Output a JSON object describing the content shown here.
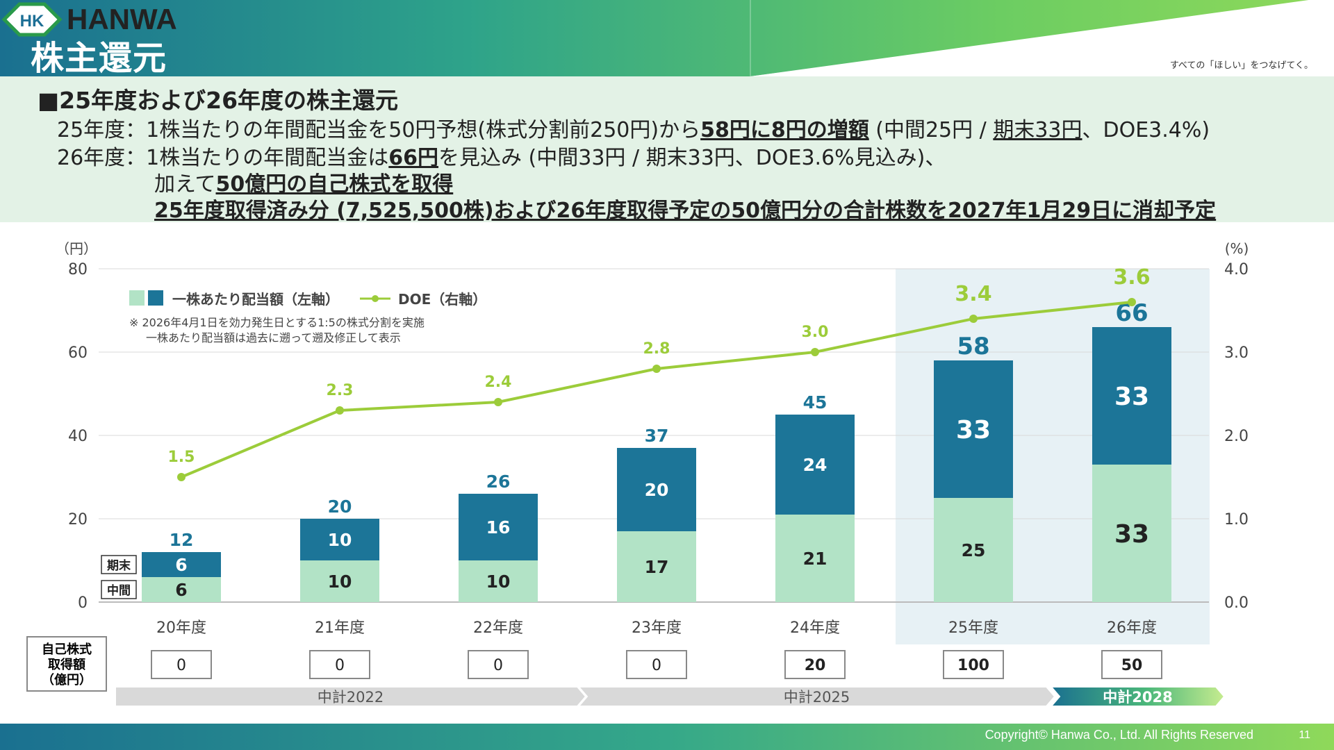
{
  "header": {
    "title": "株主還元",
    "logo_mark": "HK",
    "logo_text": "HANWA",
    "logo_tagline": "すべての「ほしい」をつなげてく。",
    "colors": {
      "teal": "#1a7090",
      "green": "#7fd35a"
    }
  },
  "summary": {
    "heading": "■25年度および26年度の株主還元",
    "fy25": {
      "prefix": "25年度：1株当たりの年間配当金を50円予想(株式分割前250円)から",
      "highlight": "58円に8円の増額",
      "detail_a": " (中間25円 / ",
      "detail_underlined": "期末33円",
      "detail_b": "、DOE3.4%)"
    },
    "fy26": {
      "prefix": "26年度：1株当たりの年間配当金は",
      "highlight": "66円",
      "suffix": "を見込み (中間33円 / 期末33円、DOE3.6%見込み)、",
      "line2_prefix": "加えて",
      "line2_highlight": "50億円の自己株式を取得",
      "line3": "25年度取得済み分 (7,525,500株)および26年度取得予定の50億円分の合計株数を2027年1月29日に消却予定"
    }
  },
  "chart_data": {
    "type": "bar",
    "stacked": true,
    "categories": [
      "20年度",
      "21年度",
      "22年度",
      "23年度",
      "24年度",
      "25年度",
      "26年度"
    ],
    "series": [
      {
        "name": "中間",
        "values": [
          6,
          10,
          10,
          17,
          21,
          25,
          33
        ],
        "color": "#b2e3c6"
      },
      {
        "name": "期末",
        "values": [
          6,
          10,
          16,
          20,
          24,
          33,
          33
        ],
        "color": "#1c7598"
      }
    ],
    "totals": [
      12,
      20,
      26,
      37,
      45,
      58,
      66
    ],
    "line_series": {
      "name": "DOE（右軸）",
      "values": [
        1.5,
        2.3,
        2.4,
        2.8,
        3.0,
        3.4,
        3.6
      ],
      "labels": [
        "1.5",
        "2.3",
        "2.4",
        "2.8",
        "3.0",
        "3.4",
        "3.6"
      ],
      "color": "#9ccc3a"
    },
    "y_left": {
      "unit": "（円）",
      "min": 0,
      "max": 80,
      "ticks": [
        0,
        20,
        40,
        60,
        80
      ],
      "tick_labels": [
        "0",
        "20",
        "40",
        "60",
        "80"
      ]
    },
    "y_right": {
      "unit": "(%)",
      "min": 0,
      "max": 4,
      "ticks": [
        0,
        1,
        2,
        3,
        4
      ],
      "tick_labels": [
        "0.0",
        "1.0",
        "2.0",
        "3.0",
        "4.0"
      ]
    },
    "legend": {
      "bar_label": "一株あたり配当額（左軸）",
      "line_label": "DOE（右軸）",
      "placement": "top-left"
    },
    "note_lines": [
      "※ 2026年4月1日を効力発生日とする1:5の株式分割を実施",
      "一株あたり配当額は過去に遡って遡及修正して表示"
    ],
    "segment_tags": {
      "bottom": "中間",
      "top": "期末"
    },
    "highlight_categories": [
      "25年度",
      "26年度"
    ],
    "grid": true
  },
  "buyback": {
    "label_lines": [
      "自己株式",
      "取得額",
      "（億円）"
    ],
    "values": [
      "0",
      "0",
      "0",
      "0",
      "20",
      "100",
      "50"
    ],
    "bold": [
      false,
      false,
      false,
      false,
      true,
      true,
      true
    ]
  },
  "plans": [
    {
      "label": "中計2022"
    },
    {
      "label": "中計2025"
    },
    {
      "label": "中計2028"
    }
  ],
  "footer": {
    "copyright": "Copyright© Hanwa Co., Ltd. All Rights Reserved",
    "page": "11"
  }
}
